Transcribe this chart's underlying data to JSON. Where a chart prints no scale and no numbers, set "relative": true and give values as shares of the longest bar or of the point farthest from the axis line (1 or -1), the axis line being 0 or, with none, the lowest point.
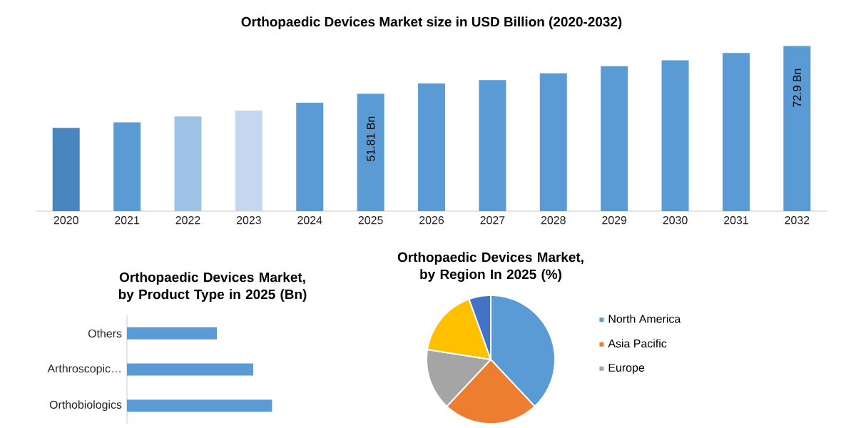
{
  "chart_data": [
    {
      "type": "bar",
      "title": "Orthopaedic Devices Market size in USD Billion (2020-2032)",
      "categories": [
        "2020",
        "2021",
        "2022",
        "2023",
        "2024",
        "2025",
        "2026",
        "2027",
        "2028",
        "2029",
        "2030",
        "2031",
        "2032"
      ],
      "values": [
        36.8,
        39.2,
        41.8,
        44.4,
        47.9,
        51.81,
        56.4,
        57.9,
        60.9,
        64.0,
        66.6,
        69.9,
        72.9
      ],
      "colors": [
        "#4a86be",
        "#5b9bd5",
        "#9dc3e6",
        "#c5d7ef",
        "#5b9bd5",
        "#5b9bd5",
        "#5b9bd5",
        "#5b9bd5",
        "#5b9bd5",
        "#5b9bd5",
        "#5b9bd5",
        "#5b9bd5",
        "#5b9bd5"
      ],
      "value_labels": [
        null,
        null,
        null,
        null,
        null,
        "51.81 Bn",
        null,
        null,
        null,
        null,
        null,
        null,
        "72.9 Bn"
      ],
      "tick_labels": "x"
    },
    {
      "type": "bar",
      "orientation": "horizontal",
      "title": "Orthopaedic Devices Market, by Product Type in 2025 (Bn)",
      "categories": [
        "Others",
        "Arthroscopic…",
        "Orthobiologics"
      ],
      "values": [
        0.62,
        0.87,
        1
      ],
      "color": "#5b9bd5",
      "relative": true,
      "tick_labels": "y"
    },
    {
      "type": "pie",
      "title": "Orthopaedic Devices Market, by Region In 2025 (%)",
      "categories": [
        "North America",
        "Asia Pacific",
        "Europe",
        null,
        null
      ],
      "values": [
        38,
        24,
        15.5,
        17,
        5.5
      ],
      "colors": [
        "#5b9bd5",
        "#ed7d31",
        "#a5a5a5",
        "#ffc000",
        "#4472c4"
      ],
      "legend": "right"
    }
  ]
}
